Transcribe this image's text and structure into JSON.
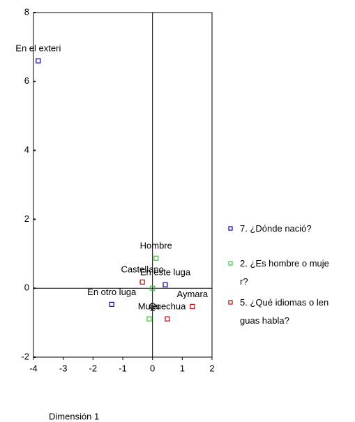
{
  "chart_data": {
    "type": "scatter",
    "xlabel": "Dimensión 1",
    "xlim": [
      -4,
      2
    ],
    "ylim": [
      -2,
      8
    ],
    "xticks": [
      -4,
      -3,
      -2,
      -1,
      0,
      1,
      2
    ],
    "yticks": [
      -2,
      0,
      2,
      4,
      6,
      8
    ],
    "series": [
      {
        "name": "7. ¿Dónde nació?",
        "color": "#0000cc",
        "x": [
          -3.84,
          0.43,
          -1.37
        ],
        "y": [
          6.6,
          0.1,
          -0.47
        ],
        "labels": [
          "En el exteri",
          "En este luga",
          "En otro luga"
        ]
      },
      {
        "name": "2. ¿Es hombre o mujer?",
        "color": "#33cc33",
        "x": [
          0.12,
          -0.11,
          0
        ],
        "y": [
          0.87,
          -0.89,
          0
        ],
        "labels": [
          "Hombre",
          "Mujer",
          null
        ]
      },
      {
        "name": "5. ¿Qué idiomas o lenguas habla?",
        "color": "#cc0000",
        "x": [
          -0.34,
          1.34,
          0.5
        ],
        "y": [
          0.18,
          -0.53,
          -0.89
        ],
        "labels": [
          "Castellano",
          "Aymara",
          "Quechua"
        ]
      }
    ]
  }
}
